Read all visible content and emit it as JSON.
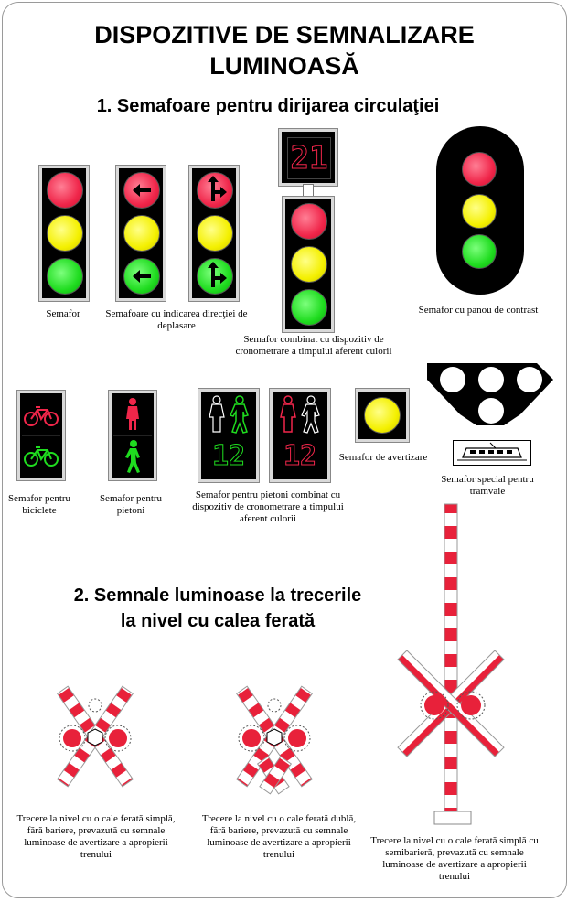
{
  "header": {
    "title_line1": "DISPOZITIVE DE SEMNALIZARE",
    "title_line2": "LUMINOASĂ"
  },
  "section1": {
    "heading": "1. Semafoare pentru dirijarea circulaţiei",
    "captions": {
      "semafor": "Semafor",
      "directie_line1": "Semafoare cu indicarea direcţiei de",
      "directie_line2": "deplasare",
      "combinat_line1": "Semafor combinat cu dispozitiv de",
      "combinat_line2": "cronometrare a timpului aferent culorii",
      "panou": "Semafor cu panou de contrast",
      "biciclete_line1": "Semafor pentru",
      "biciclete_line2": "biciclete",
      "pietoni_line1": "Semafor pentru",
      "pietoni_line2": "pietoni",
      "pietoni_cron_line1": "Semafor pentru pietoni combinat cu",
      "pietoni_cron_line2": "dispozitiv de cronometrare a timpului",
      "pietoni_cron_line3": "aferent culorii",
      "avertizare": "Semafor de avertizare",
      "tramvaie_line1": "Semafor special pentru",
      "tramvaie_line2": "tramvaie"
    },
    "timer_display": "21",
    "ped_timer_left": "12",
    "ped_timer_right": "12"
  },
  "section2": {
    "heading_line1": "2. Semnale luminoase la trecerile",
    "heading_line2": "la nivel cu calea ferată",
    "captions": {
      "simpla_line1": "Trecere la nivel cu o cale ferată simplă,",
      "simpla_line2": "fără bariere, prevazută cu semnale",
      "simpla_line3": "luminoase de avertizare a apropierii",
      "simpla_line4": "trenului",
      "dubla_line1": "Trecere la nivel cu o cale ferată dublă,",
      "dubla_line2": "fără bariere, prevazută cu semnale",
      "dubla_line3": "luminoase de avertizare a apropierii",
      "dubla_line4": "trenului",
      "semibariera_line1": "Trecere la nivel cu o cale ferată simplă cu",
      "semibariera_line2": "semibarieră, prevazută cu semnale",
      "semibariera_line3": "luminoase de avertizare a apropierii",
      "semibariera_line4": "trenului"
    }
  },
  "colors": {
    "red": "#f0264a",
    "yellow": "#f4f000",
    "green": "#1fdc1f",
    "stripe_red": "#e8213a"
  }
}
